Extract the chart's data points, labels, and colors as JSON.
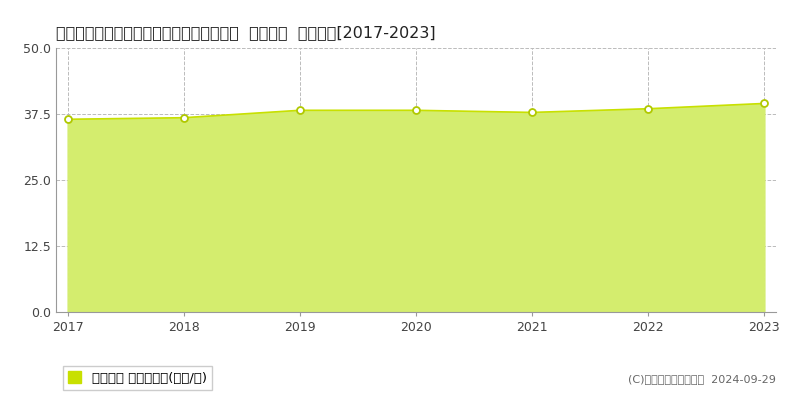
{
  "title": "愛知県春日井市如意申町４丁目２３番１９  基準地価  地価推移[2017-2023]",
  "years": [
    2017,
    2018,
    2019,
    2020,
    2021,
    2022,
    2023
  ],
  "values": [
    36.5,
    36.8,
    38.2,
    38.2,
    37.8,
    38.5,
    39.5
  ],
  "ylim": [
    0,
    50
  ],
  "yticks": [
    0,
    12.5,
    25,
    37.5,
    50
  ],
  "line_color": "#c8e000",
  "fill_color": "#d4ed6e",
  "fill_alpha": 1.0,
  "marker_color": "#ffffff",
  "marker_edge_color": "#b0c800",
  "grid_color": "#bbbbbb",
  "bg_color": "#ffffff",
  "legend_label": "基準地価 平均坪単価(万円/坪)",
  "copyright_text": "(C)土地価格ドットコム  2024-09-29",
  "title_fontsize": 11.5,
  "tick_fontsize": 9,
  "legend_fontsize": 9.5
}
